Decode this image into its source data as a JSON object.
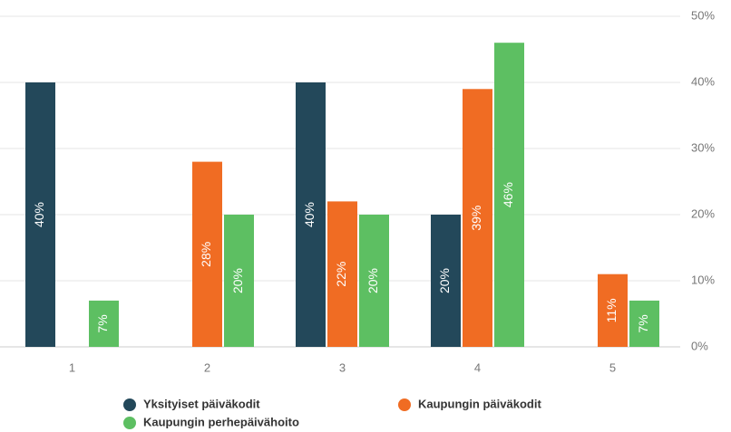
{
  "chart_data": {
    "type": "bar",
    "categories": [
      "1",
      "2",
      "3",
      "4",
      "5"
    ],
    "series": [
      {
        "name": "Yksityiset päiväkodit",
        "color": "#23485a",
        "values": [
          40,
          0,
          40,
          20,
          0
        ],
        "value_labels": [
          "40%",
          null,
          "40%",
          "20%",
          null
        ]
      },
      {
        "name": "Kaupungin päiväkodit",
        "color": "#f06c23",
        "values": [
          0,
          28,
          22,
          39,
          11
        ],
        "value_labels": [
          null,
          "28%",
          "22%",
          "39%",
          "11%"
        ]
      },
      {
        "name": "Kaupungin perhepäivähoito",
        "color": "#5dbf62",
        "values": [
          7,
          20,
          20,
          46,
          7
        ],
        "value_labels": [
          "7%",
          "20%",
          "20%",
          "46%",
          "7%"
        ]
      }
    ],
    "ylim": [
      0,
      50
    ],
    "yticks": [
      {
        "value": 0,
        "label": "0%"
      },
      {
        "value": 10,
        "label": "10%"
      },
      {
        "value": 20,
        "label": "20%"
      },
      {
        "value": 30,
        "label": "30%"
      },
      {
        "value": 40,
        "label": "40%"
      },
      {
        "value": 50,
        "label": "50%"
      }
    ],
    "grid": true
  }
}
